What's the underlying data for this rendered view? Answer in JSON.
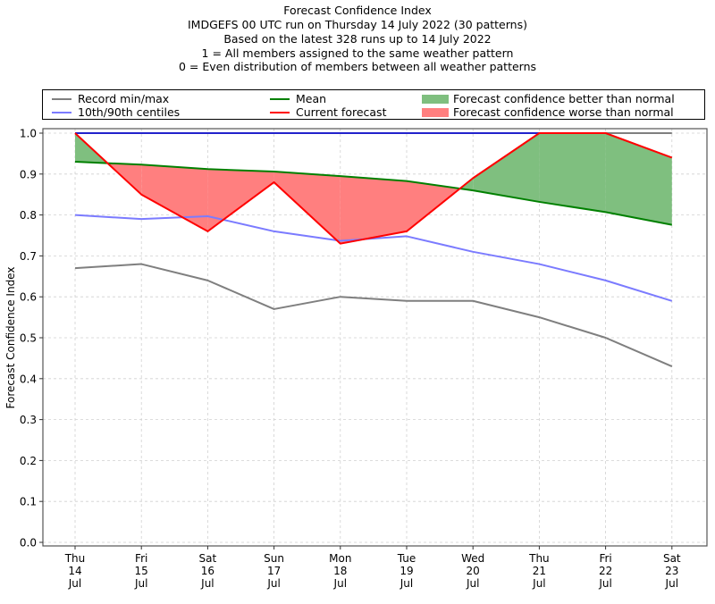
{
  "title_lines": [
    "Forecast Confidence Index",
    "IMDGEFS 00 UTC run on Thursday 14 July 2022 (30 patterns)",
    "Based on the latest 328 runs up to 14 July 2022",
    "1 = All members assigned to the same weather pattern",
    "0 = Even distribution of members between all weather patterns"
  ],
  "legend": {
    "record": "Record min/max",
    "centiles": "10th/90th centiles",
    "mean": "Mean",
    "current": "Current forecast",
    "better": "Forecast confidence better than normal",
    "worse": "Forecast confidence worse than normal"
  },
  "colors": {
    "record": "#7f7f7f",
    "centiles": "#7b7bff",
    "centile_top": "#2222cc",
    "mean": "#008000",
    "current": "#ff0000",
    "better": "#7fbf7f",
    "worse": "#ff7f7f"
  },
  "chart_data": {
    "type": "line",
    "title": "Forecast Confidence Index",
    "xlabel": "",
    "ylabel": "Forecast Confidence Index",
    "ylim": [
      0,
      1
    ],
    "yticks": [
      "0.0",
      "0.1",
      "0.2",
      "0.3",
      "0.4",
      "0.5",
      "0.6",
      "0.7",
      "0.8",
      "0.9",
      "1.0"
    ],
    "grid": true,
    "legend_position": "top",
    "categories": [
      [
        "Thu",
        "14",
        "Jul"
      ],
      [
        "Fri",
        "15",
        "Jul"
      ],
      [
        "Sat",
        "16",
        "Jul"
      ],
      [
        "Sun",
        "17",
        "Jul"
      ],
      [
        "Mon",
        "18",
        "Jul"
      ],
      [
        "Tue",
        "19",
        "Jul"
      ],
      [
        "Wed",
        "20",
        "Jul"
      ],
      [
        "Thu",
        "21",
        "Jul"
      ],
      [
        "Fri",
        "22",
        "Jul"
      ],
      [
        "Sat",
        "23",
        "Jul"
      ]
    ],
    "series": [
      {
        "name": "Record max",
        "values": [
          1.0,
          1.0,
          1.0,
          1.0,
          1.0,
          1.0,
          1.0,
          1.0,
          1.0,
          1.0
        ]
      },
      {
        "name": "Record min",
        "values": [
          0.67,
          0.68,
          0.64,
          0.57,
          0.6,
          0.59,
          0.59,
          0.55,
          0.5,
          0.43
        ]
      },
      {
        "name": "90th centile",
        "values": [
          1.0,
          1.0,
          1.0,
          1.0,
          1.0,
          1.0,
          1.0,
          1.0,
          null,
          null
        ]
      },
      {
        "name": "10th centile",
        "values": [
          0.8,
          0.79,
          0.797,
          0.76,
          0.737,
          0.748,
          0.71,
          0.68,
          0.64,
          0.59
        ]
      },
      {
        "name": "Mean",
        "values": [
          0.93,
          0.923,
          0.912,
          0.906,
          0.895,
          0.883,
          0.86,
          0.832,
          0.807,
          0.776
        ]
      },
      {
        "name": "Current forecast",
        "values": [
          1.0,
          0.85,
          0.76,
          0.88,
          0.73,
          0.76,
          0.89,
          1.0,
          1.0,
          0.94
        ]
      }
    ]
  }
}
